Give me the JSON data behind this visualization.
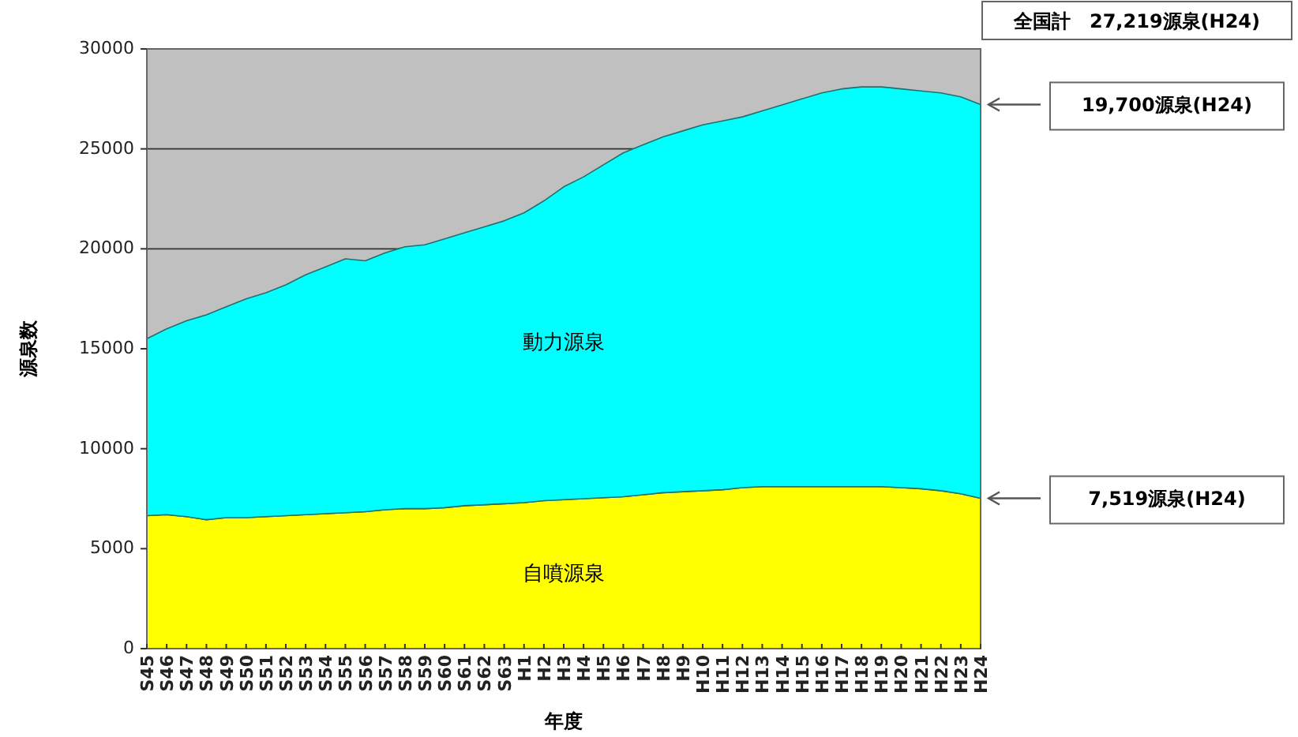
{
  "chart_data": {
    "type": "area",
    "stacked": true,
    "xlabel": "年度",
    "ylabel": "源泉数",
    "categories": [
      "S45",
      "S46",
      "S47",
      "S48",
      "S49",
      "S50",
      "S51",
      "S52",
      "S53",
      "S54",
      "S55",
      "S56",
      "S57",
      "S58",
      "S59",
      "S60",
      "S61",
      "S62",
      "S63",
      "H1",
      "H2",
      "H3",
      "H4",
      "H5",
      "H6",
      "H7",
      "H8",
      "H9",
      "H10",
      "H11",
      "H12",
      "H13",
      "H14",
      "H15",
      "H16",
      "H17",
      "H18",
      "H19",
      "H20",
      "H21",
      "H22",
      "H23",
      "H24"
    ],
    "series": [
      {
        "name": "自噴源泉",
        "color": "#ffff00",
        "values": [
          6650,
          6700,
          6600,
          6450,
          6550,
          6550,
          6600,
          6650,
          6700,
          6750,
          6800,
          6850,
          6950,
          7000,
          7000,
          7050,
          7150,
          7200,
          7250,
          7300,
          7400,
          7450,
          7500,
          7550,
          7600,
          7700,
          7800,
          7850,
          7900,
          7950,
          8050,
          8100,
          8100,
          8100,
          8100,
          8100,
          8100,
          8100,
          8050,
          8000,
          7900,
          7750,
          7519
        ]
      },
      {
        "name": "動力源泉",
        "color": "#00ffff",
        "values": [
          8850,
          9300,
          9800,
          10250,
          10550,
          10950,
          11200,
          11550,
          12000,
          12350,
          12700,
          12550,
          12850,
          13100,
          13200,
          13450,
          13650,
          13900,
          14150,
          14500,
          15000,
          15650,
          16100,
          16650,
          17200,
          17500,
          17800,
          18050,
          18300,
          18450,
          18550,
          18800,
          19100,
          19400,
          19700,
          19900,
          20000,
          20000,
          19950,
          19900,
          19900,
          19850,
          19700
        ]
      }
    ],
    "ylim": [
      0,
      30000
    ],
    "yticks": [
      0,
      5000,
      10000,
      15000,
      20000,
      25000,
      30000
    ],
    "grid": "y",
    "annotations": [
      "全国計　27,219源泉(H24)",
      "19,700源泉(H24)",
      "7,519源泉(H24)"
    ]
  }
}
